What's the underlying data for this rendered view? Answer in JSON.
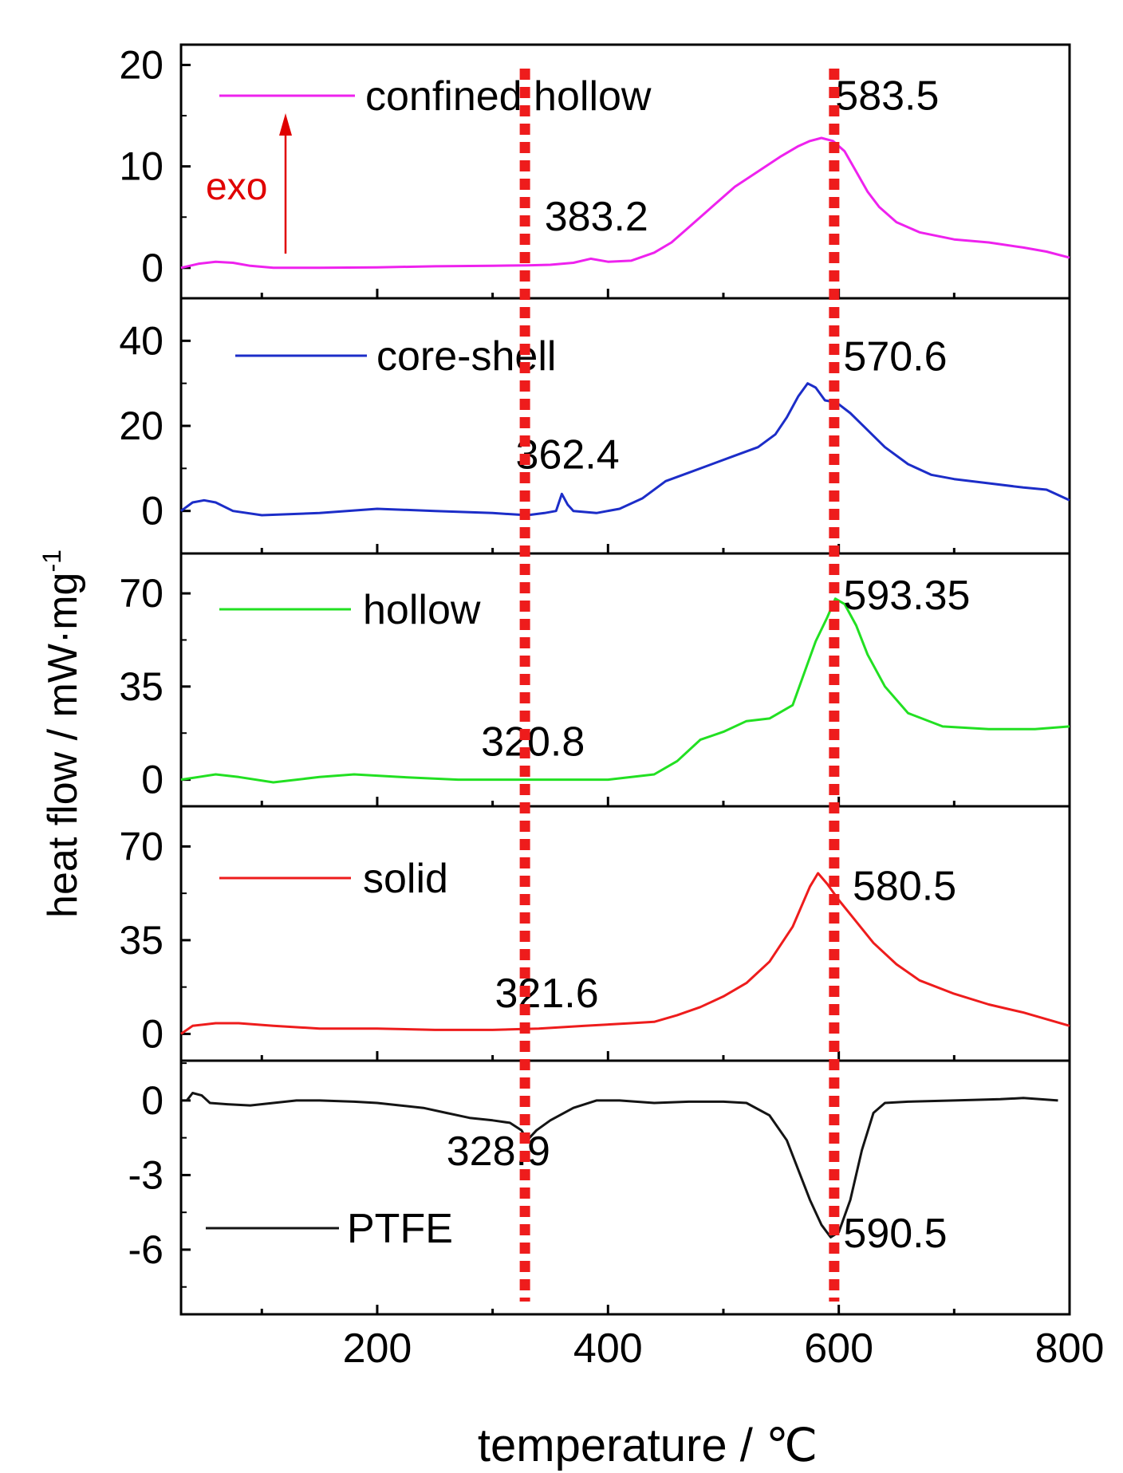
{
  "chart_data": {
    "type": "line",
    "xlabel": "temperature / ℃",
    "ylabel": "heat flow / mW·mg",
    "ylabel_sup": "-1",
    "xlim": [
      30,
      800
    ],
    "x_ticks": [
      200,
      400,
      600,
      800
    ],
    "x_minor_ticks": [
      100,
      300,
      500,
      700
    ],
    "annotation_exo": "exo",
    "guide_lines_x": [
      328,
      596
    ],
    "guide_color": "#ee1c1c",
    "panels": [
      {
        "series": "confined hollow",
        "color": "#ee22ee",
        "ylim": [
          -3,
          22
        ],
        "yticks": [
          0,
          10,
          20
        ],
        "yminor": [
          5,
          15
        ],
        "labels": [
          {
            "text": "583.5",
            "x": 597,
            "y": 15.6
          },
          {
            "text": "383.2",
            "x": 345,
            "y": 3.7
          }
        ],
        "points": [
          [
            30,
            0
          ],
          [
            45,
            0.4
          ],
          [
            60,
            0.6
          ],
          [
            75,
            0.5
          ],
          [
            90,
            0.2
          ],
          [
            110,
            0
          ],
          [
            150,
            0
          ],
          [
            200,
            0.05
          ],
          [
            250,
            0.15
          ],
          [
            300,
            0.2
          ],
          [
            330,
            0.25
          ],
          [
            350,
            0.3
          ],
          [
            370,
            0.5
          ],
          [
            385,
            0.9
          ],
          [
            400,
            0.6
          ],
          [
            420,
            0.7
          ],
          [
            440,
            1.5
          ],
          [
            455,
            2.5
          ],
          [
            470,
            4
          ],
          [
            490,
            6
          ],
          [
            510,
            8
          ],
          [
            530,
            9.5
          ],
          [
            550,
            11
          ],
          [
            565,
            12
          ],
          [
            575,
            12.5
          ],
          [
            585,
            12.8
          ],
          [
            595,
            12.5
          ],
          [
            605,
            11.5
          ],
          [
            615,
            9.5
          ],
          [
            625,
            7.5
          ],
          [
            635,
            6
          ],
          [
            650,
            4.5
          ],
          [
            670,
            3.5
          ],
          [
            700,
            2.8
          ],
          [
            730,
            2.5
          ],
          [
            760,
            2
          ],
          [
            780,
            1.6
          ],
          [
            800,
            1
          ]
        ]
      },
      {
        "series": "core-shell",
        "color": "#1c2dc8",
        "ylim": [
          -10,
          50
        ],
        "yticks": [
          0,
          20,
          40
        ],
        "yminor": [
          10,
          30
        ],
        "labels": [
          {
            "text": "570.6",
            "x": 604,
            "y": 33
          },
          {
            "text": "362.4",
            "x": 320,
            "y": 10
          }
        ],
        "points": [
          [
            30,
            0
          ],
          [
            40,
            2
          ],
          [
            50,
            2.5
          ],
          [
            60,
            2
          ],
          [
            75,
            0
          ],
          [
            100,
            -1
          ],
          [
            150,
            -0.5
          ],
          [
            200,
            0.5
          ],
          [
            250,
            0
          ],
          [
            300,
            -0.5
          ],
          [
            330,
            -1
          ],
          [
            345,
            -0.5
          ],
          [
            355,
            0
          ],
          [
            360,
            4
          ],
          [
            365,
            1.5
          ],
          [
            370,
            0
          ],
          [
            390,
            -0.5
          ],
          [
            410,
            0.5
          ],
          [
            430,
            3
          ],
          [
            450,
            7
          ],
          [
            470,
            9
          ],
          [
            490,
            11
          ],
          [
            510,
            13
          ],
          [
            530,
            15
          ],
          [
            545,
            18
          ],
          [
            555,
            22
          ],
          [
            565,
            27
          ],
          [
            573,
            30
          ],
          [
            580,
            29
          ],
          [
            588,
            26
          ],
          [
            598,
            25.5
          ],
          [
            610,
            23
          ],
          [
            625,
            19
          ],
          [
            640,
            15
          ],
          [
            660,
            11
          ],
          [
            680,
            8.5
          ],
          [
            700,
            7.5
          ],
          [
            730,
            6.5
          ],
          [
            760,
            5.5
          ],
          [
            780,
            5
          ],
          [
            800,
            2.5
          ]
        ]
      },
      {
        "series": "hollow",
        "color": "#22e022",
        "ylim": [
          -10,
          85
        ],
        "yticks": [
          0,
          35,
          70
        ],
        "yminor": [
          17.5,
          52.5
        ],
        "labels": [
          {
            "text": "593.35",
            "x": 604,
            "y": 64
          },
          {
            "text": "320.8",
            "x": 290,
            "y": 9
          }
        ],
        "points": [
          [
            30,
            0
          ],
          [
            60,
            2
          ],
          [
            80,
            1
          ],
          [
            110,
            -1
          ],
          [
            150,
            1
          ],
          [
            180,
            2
          ],
          [
            220,
            1
          ],
          [
            270,
            0
          ],
          [
            320,
            0
          ],
          [
            360,
            0
          ],
          [
            400,
            0
          ],
          [
            440,
            2
          ],
          [
            460,
            7
          ],
          [
            480,
            15
          ],
          [
            500,
            18
          ],
          [
            520,
            22
          ],
          [
            540,
            23
          ],
          [
            560,
            28
          ],
          [
            570,
            40
          ],
          [
            580,
            52
          ],
          [
            590,
            61
          ],
          [
            597,
            68
          ],
          [
            605,
            66
          ],
          [
            615,
            58
          ],
          [
            625,
            47
          ],
          [
            640,
            35
          ],
          [
            660,
            25
          ],
          [
            690,
            20
          ],
          [
            730,
            19
          ],
          [
            770,
            19
          ],
          [
            800,
            20
          ]
        ]
      },
      {
        "series": "solid",
        "color": "#ee1c1c",
        "ylim": [
          -10,
          85
        ],
        "yticks": [
          0,
          35,
          70
        ],
        "yminor": [
          17.5,
          52.5
        ],
        "labels": [
          {
            "text": "580.5",
            "x": 612,
            "y": 50
          },
          {
            "text": "321.6",
            "x": 302,
            "y": 10
          }
        ],
        "points": [
          [
            30,
            0
          ],
          [
            40,
            3
          ],
          [
            60,
            4
          ],
          [
            80,
            4
          ],
          [
            110,
            3
          ],
          [
            150,
            2
          ],
          [
            200,
            2
          ],
          [
            250,
            1.5
          ],
          [
            300,
            1.5
          ],
          [
            340,
            2
          ],
          [
            380,
            3
          ],
          [
            420,
            4
          ],
          [
            440,
            4.5
          ],
          [
            460,
            7
          ],
          [
            480,
            10
          ],
          [
            500,
            14
          ],
          [
            520,
            19
          ],
          [
            540,
            27
          ],
          [
            560,
            40
          ],
          [
            575,
            55
          ],
          [
            582,
            60
          ],
          [
            590,
            56
          ],
          [
            600,
            50
          ],
          [
            615,
            42
          ],
          [
            630,
            34
          ],
          [
            650,
            26
          ],
          [
            670,
            20
          ],
          [
            700,
            15
          ],
          [
            730,
            11
          ],
          [
            760,
            8
          ],
          [
            800,
            3
          ]
        ]
      },
      {
        "series": "PTFE",
        "color": "#141414",
        "ylim": [
          -8.6,
          1.6
        ],
        "yticks": [
          0,
          -3,
          -6
        ],
        "yminor": [
          1.5,
          -1.5,
          -4.5,
          -7.5
        ],
        "labels": [
          {
            "text": "590.5",
            "x": 604,
            "y": -5.9
          },
          {
            "text": "328.9",
            "x": 260,
            "y": -2.6
          }
        ],
        "points": [
          [
            35,
            0
          ],
          [
            40,
            0.3
          ],
          [
            48,
            0.2
          ],
          [
            55,
            -0.1
          ],
          [
            70,
            -0.15
          ],
          [
            90,
            -0.2
          ],
          [
            110,
            -0.1
          ],
          [
            130,
            0
          ],
          [
            150,
            0
          ],
          [
            180,
            -0.05
          ],
          [
            200,
            -0.1
          ],
          [
            220,
            -0.2
          ],
          [
            240,
            -0.3
          ],
          [
            260,
            -0.5
          ],
          [
            280,
            -0.7
          ],
          [
            300,
            -0.8
          ],
          [
            315,
            -0.9
          ],
          [
            325,
            -1.2
          ],
          [
            330,
            -1.6
          ],
          [
            338,
            -1.2
          ],
          [
            350,
            -0.8
          ],
          [
            370,
            -0.3
          ],
          [
            390,
            0
          ],
          [
            410,
            0
          ],
          [
            440,
            -0.1
          ],
          [
            470,
            -0.05
          ],
          [
            500,
            -0.05
          ],
          [
            520,
            -0.1
          ],
          [
            540,
            -0.6
          ],
          [
            555,
            -1.6
          ],
          [
            565,
            -2.8
          ],
          [
            575,
            -4
          ],
          [
            585,
            -5
          ],
          [
            593,
            -5.5
          ],
          [
            600,
            -5.3
          ],
          [
            610,
            -4
          ],
          [
            620,
            -2
          ],
          [
            630,
            -0.5
          ],
          [
            640,
            -0.1
          ],
          [
            660,
            -0.05
          ],
          [
            700,
            0
          ],
          [
            740,
            0.05
          ],
          [
            760,
            0.1
          ],
          [
            790,
            0
          ]
        ]
      }
    ]
  }
}
